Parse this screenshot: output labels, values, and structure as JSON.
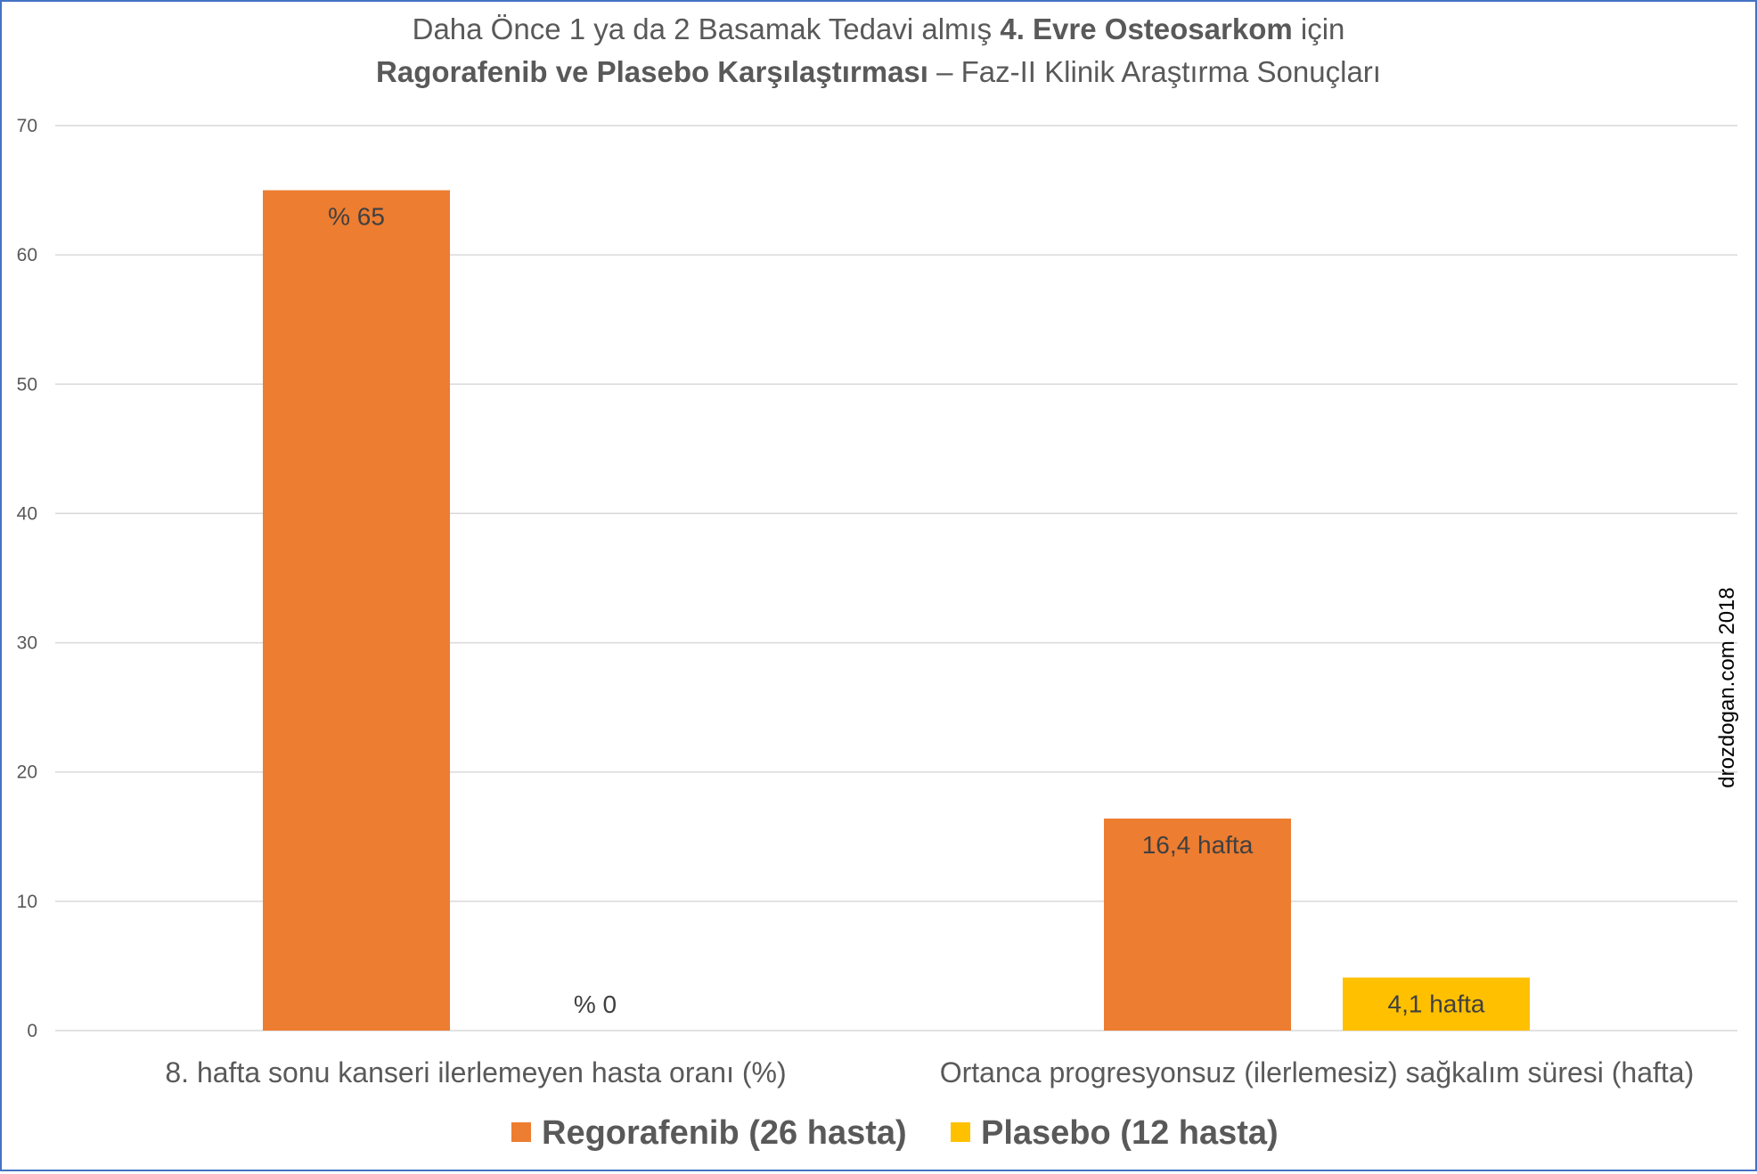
{
  "chart_data": {
    "type": "bar",
    "title": [
      [
        {
          "text": "Daha Önce 1 ya da 2 Basamak Tedavi almış ",
          "bold": false
        },
        {
          "text": "4. Evre Osteosarkom",
          "bold": true
        },
        {
          "text": " için",
          "bold": false
        }
      ],
      [
        {
          "text": "Ragorafenib ve Plasebo Karşılaştırması",
          "bold": true
        },
        {
          "text": " – Faz-II Klinik Araştırma Sonuçları",
          "bold": false
        }
      ]
    ],
    "categories": [
      "8. hafta sonu kanseri ilerlemeyen hasta oranı (%)",
      "Ortanca progresyonsuz (ilerlemesiz) sağkalım süresi (hafta)"
    ],
    "series": [
      {
        "name": "Regorafenib (26 hasta)",
        "color": "#ed7d31",
        "values": [
          65,
          16.4
        ],
        "labels": [
          "% 65",
          "16,4 hafta"
        ]
      },
      {
        "name": "Plasebo (12 hasta)",
        "color": "#ffc000",
        "values": [
          0,
          4.1
        ],
        "labels": [
          "% 0",
          "4,1 hafta"
        ]
      }
    ],
    "ylim": [
      0,
      70
    ],
    "yticks": [
      0,
      10,
      20,
      30,
      40,
      50,
      60,
      70
    ],
    "grid": true,
    "legend_position": "bottom",
    "xlabel": "",
    "ylabel": ""
  },
  "watermark": "drozdogan.com 2018",
  "colors": {
    "grid": "#d9d9d9",
    "text": "#595959",
    "border": "#4472c4"
  }
}
